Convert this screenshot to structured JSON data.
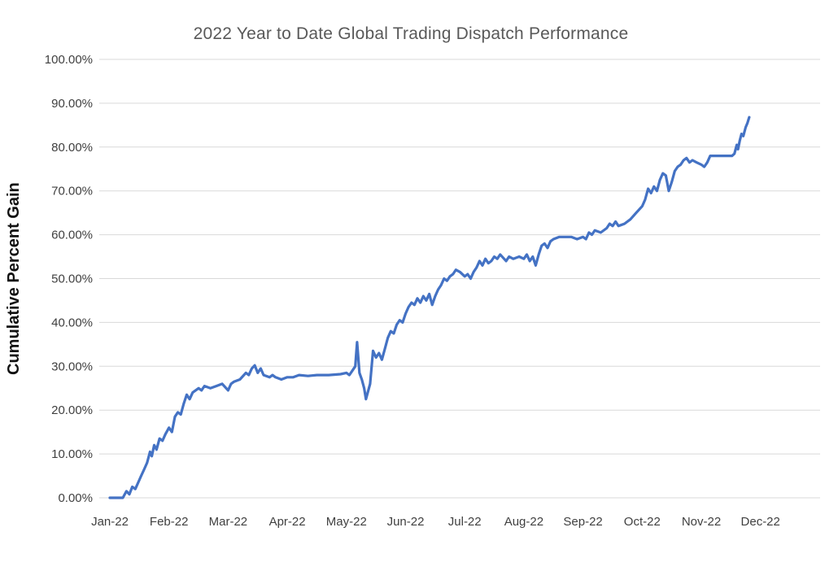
{
  "chart_data": {
    "type": "line",
    "title": "2022 Year to Date Global Trading Dispatch Performance",
    "xlabel": "",
    "ylabel": "Cumulative Percent Gain",
    "x_tick_labels": [
      "Jan-22",
      "Feb-22",
      "Mar-22",
      "Apr-22",
      "May-22",
      "Jun-22",
      "Jul-22",
      "Aug-22",
      "Sep-22",
      "Oct-22",
      "Nov-22",
      "Dec-22"
    ],
    "y_tick_values": [
      0,
      10,
      20,
      30,
      40,
      50,
      60,
      70,
      80,
      90,
      100
    ],
    "y_tick_labels": [
      "0.00%",
      "10.00%",
      "20.00%",
      "30.00%",
      "40.00%",
      "50.00%",
      "60.00%",
      "70.00%",
      "80.00%",
      "90.00%",
      "100.00%"
    ],
    "ylim": [
      0,
      100
    ],
    "grid": "horizontal",
    "legend_position": "none",
    "series": [
      {
        "name": "Cumulative Percent Gain",
        "points": [
          [
            0.0,
            0.0
          ],
          [
            0.22,
            0.0
          ],
          [
            0.28,
            1.5
          ],
          [
            0.33,
            0.8
          ],
          [
            0.38,
            2.5
          ],
          [
            0.43,
            2.0
          ],
          [
            0.48,
            3.5
          ],
          [
            0.53,
            5.0
          ],
          [
            0.58,
            6.5
          ],
          [
            0.63,
            8.0
          ],
          [
            0.68,
            10.5
          ],
          [
            0.71,
            9.5
          ],
          [
            0.75,
            12.0
          ],
          [
            0.79,
            11.0
          ],
          [
            0.84,
            13.5
          ],
          [
            0.89,
            13.0
          ],
          [
            0.94,
            14.5
          ],
          [
            1.0,
            16.0
          ],
          [
            1.05,
            15.0
          ],
          [
            1.1,
            18.5
          ],
          [
            1.15,
            19.5
          ],
          [
            1.2,
            19.0
          ],
          [
            1.25,
            21.5
          ],
          [
            1.3,
            23.5
          ],
          [
            1.35,
            22.5
          ],
          [
            1.4,
            24.0
          ],
          [
            1.5,
            25.0
          ],
          [
            1.55,
            24.5
          ],
          [
            1.6,
            25.5
          ],
          [
            1.7,
            25.0
          ],
          [
            1.8,
            25.5
          ],
          [
            1.9,
            26.0
          ],
          [
            2.0,
            24.5
          ],
          [
            2.05,
            26.0
          ],
          [
            2.1,
            26.5
          ],
          [
            2.2,
            27.0
          ],
          [
            2.3,
            28.5
          ],
          [
            2.35,
            28.0
          ],
          [
            2.4,
            29.5
          ],
          [
            2.45,
            30.2
          ],
          [
            2.5,
            28.5
          ],
          [
            2.55,
            29.5
          ],
          [
            2.6,
            28.0
          ],
          [
            2.7,
            27.5
          ],
          [
            2.75,
            28.0
          ],
          [
            2.8,
            27.5
          ],
          [
            2.9,
            27.0
          ],
          [
            3.0,
            27.5
          ],
          [
            3.1,
            27.5
          ],
          [
            3.2,
            28.0
          ],
          [
            3.35,
            27.8
          ],
          [
            3.5,
            28.0
          ],
          [
            3.7,
            28.0
          ],
          [
            3.9,
            28.2
          ],
          [
            4.0,
            28.5
          ],
          [
            4.05,
            28.0
          ],
          [
            4.1,
            29.0
          ],
          [
            4.15,
            30.0
          ],
          [
            4.18,
            35.5
          ],
          [
            4.22,
            28.5
          ],
          [
            4.26,
            27.0
          ],
          [
            4.3,
            25.0
          ],
          [
            4.33,
            22.5
          ],
          [
            4.4,
            26.0
          ],
          [
            4.45,
            33.5
          ],
          [
            4.5,
            32.0
          ],
          [
            4.55,
            33.0
          ],
          [
            4.6,
            31.5
          ],
          [
            4.65,
            34.0
          ],
          [
            4.7,
            36.5
          ],
          [
            4.75,
            38.0
          ],
          [
            4.8,
            37.5
          ],
          [
            4.85,
            39.5
          ],
          [
            4.9,
            40.5
          ],
          [
            4.95,
            40.0
          ],
          [
            5.0,
            42.0
          ],
          [
            5.05,
            43.5
          ],
          [
            5.1,
            44.5
          ],
          [
            5.15,
            44.0
          ],
          [
            5.2,
            45.5
          ],
          [
            5.25,
            44.5
          ],
          [
            5.3,
            46.0
          ],
          [
            5.35,
            45.0
          ],
          [
            5.4,
            46.5
          ],
          [
            5.45,
            44.0
          ],
          [
            5.5,
            46.0
          ],
          [
            5.55,
            47.5
          ],
          [
            5.6,
            48.5
          ],
          [
            5.65,
            50.0
          ],
          [
            5.7,
            49.5
          ],
          [
            5.75,
            50.5
          ],
          [
            5.8,
            51.0
          ],
          [
            5.85,
            52.0
          ],
          [
            5.92,
            51.5
          ],
          [
            6.0,
            50.5
          ],
          [
            6.05,
            51.0
          ],
          [
            6.1,
            50.0
          ],
          [
            6.15,
            51.5
          ],
          [
            6.2,
            52.5
          ],
          [
            6.25,
            54.0
          ],
          [
            6.3,
            53.0
          ],
          [
            6.35,
            54.5
          ],
          [
            6.4,
            53.5
          ],
          [
            6.45,
            54.0
          ],
          [
            6.5,
            55.0
          ],
          [
            6.55,
            54.5
          ],
          [
            6.6,
            55.5
          ],
          [
            6.7,
            54.0
          ],
          [
            6.75,
            55.0
          ],
          [
            6.82,
            54.5
          ],
          [
            6.92,
            55.0
          ],
          [
            7.0,
            54.5
          ],
          [
            7.05,
            55.5
          ],
          [
            7.1,
            54.0
          ],
          [
            7.15,
            55.0
          ],
          [
            7.2,
            53.0
          ],
          [
            7.25,
            55.5
          ],
          [
            7.3,
            57.5
          ],
          [
            7.35,
            58.0
          ],
          [
            7.4,
            57.0
          ],
          [
            7.45,
            58.5
          ],
          [
            7.5,
            59.0
          ],
          [
            7.6,
            59.5
          ],
          [
            7.7,
            59.5
          ],
          [
            7.8,
            59.5
          ],
          [
            7.9,
            59.0
          ],
          [
            8.0,
            59.5
          ],
          [
            8.05,
            59.0
          ],
          [
            8.1,
            60.5
          ],
          [
            8.15,
            60.0
          ],
          [
            8.2,
            61.0
          ],
          [
            8.3,
            60.5
          ],
          [
            8.4,
            61.5
          ],
          [
            8.45,
            62.5
          ],
          [
            8.5,
            62.0
          ],
          [
            8.55,
            63.0
          ],
          [
            8.6,
            62.0
          ],
          [
            8.7,
            62.5
          ],
          [
            8.8,
            63.5
          ],
          [
            8.9,
            65.0
          ],
          [
            9.0,
            66.5
          ],
          [
            9.05,
            68.0
          ],
          [
            9.1,
            70.5
          ],
          [
            9.15,
            69.5
          ],
          [
            9.2,
            71.0
          ],
          [
            9.25,
            70.0
          ],
          [
            9.3,
            72.5
          ],
          [
            9.35,
            74.0
          ],
          [
            9.4,
            73.5
          ],
          [
            9.45,
            70.0
          ],
          [
            9.5,
            72.0
          ],
          [
            9.55,
            74.5
          ],
          [
            9.6,
            75.5
          ],
          [
            9.65,
            76.0
          ],
          [
            9.7,
            77.0
          ],
          [
            9.75,
            77.5
          ],
          [
            9.8,
            76.5
          ],
          [
            9.85,
            77.0
          ],
          [
            9.92,
            76.5
          ],
          [
            10.0,
            76.0
          ],
          [
            10.05,
            75.5
          ],
          [
            10.1,
            76.5
          ],
          [
            10.15,
            78.0
          ],
          [
            10.25,
            78.0
          ],
          [
            10.35,
            78.0
          ],
          [
            10.45,
            78.0
          ],
          [
            10.52,
            78.0
          ],
          [
            10.56,
            78.5
          ],
          [
            10.6,
            80.5
          ],
          [
            10.62,
            79.5
          ],
          [
            10.65,
            81.5
          ],
          [
            10.68,
            83.0
          ],
          [
            10.71,
            82.5
          ],
          [
            10.75,
            84.5
          ],
          [
            10.78,
            85.5
          ],
          [
            10.81,
            86.8
          ]
        ]
      }
    ]
  },
  "colors": {
    "background": "#ffffff",
    "line": "#4472c4",
    "grid": "#d9d9d9",
    "title": "#595959",
    "tick_label": "#404040",
    "y_axis_title": "#111111"
  }
}
